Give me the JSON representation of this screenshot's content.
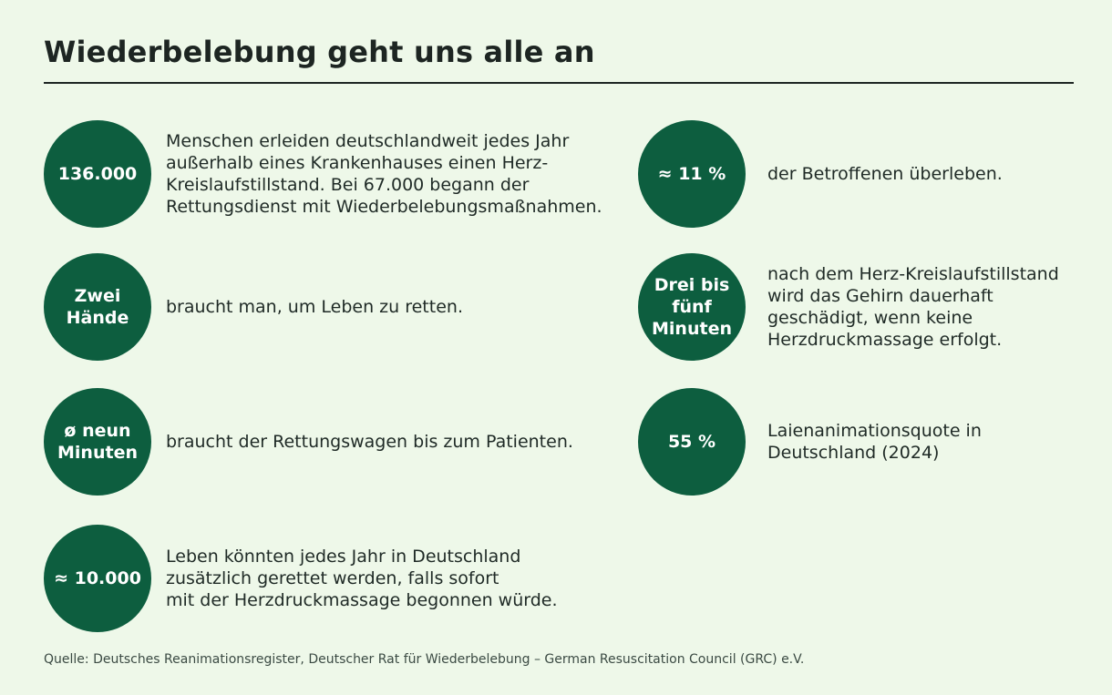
{
  "title": "Wiederbelebung geht uns alle an",
  "stats": [
    {
      "value": "136.000",
      "text": "Menschen erleiden deutschlandweit jedes Jahr\naußerhalb eines Krankenhauses einen Herz-\nKreislaufstillstand. Bei 67.000 begann der\nRettungsdienst mit Wiederbelebungsmaßnahmen."
    },
    {
      "value": "≈ 11 %",
      "text": "der Betroffenen überleben."
    },
    {
      "value": "Zwei\nHände",
      "text": "braucht man, um Leben zu retten."
    },
    {
      "value": "Drei bis\nfünf\nMinuten",
      "text": "nach dem Herz-Kreislaufstillstand\nwird das Gehirn dauerhaft\ngeschädigt, wenn keine\nHerzdruckmassage erfolgt."
    },
    {
      "value": "ø neun\nMinuten",
      "text": "braucht der Rettungswagen bis zum Patienten."
    },
    {
      "value": "55 %",
      "text": "Laienanimationsquote in\nDeutschland (2024)"
    },
    {
      "value": "≈ 10.000",
      "text": "Leben könnten jedes Jahr in Deutschland\nzusätzlich gerettet werden, falls sofort\nmit der Herzdruckmassage begonnen würde."
    }
  ],
  "source": "Quelle: Deutsches Reanimationsregister, Deutscher Rat für Wiederbelebung – German Resuscitation Council (GRC) e.V.",
  "colors": {
    "background": "#eef8e9",
    "circle": "#0d5e3f",
    "text": "#1f2a26"
  }
}
